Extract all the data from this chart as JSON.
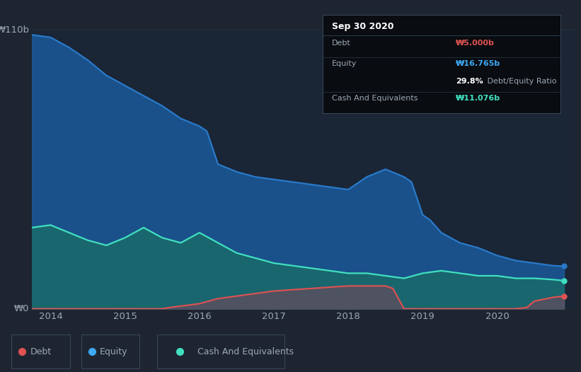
{
  "bg_color": "#1e2530",
  "chart_bg": "#1a2535",
  "ylim": [
    0,
    110
  ],
  "xlim_left": 2013.75,
  "xlim_right": 2021.05,
  "ylabel_text": "₩0",
  "ylabel_top": "₩110b",
  "x_ticks": [
    2014,
    2015,
    2016,
    2017,
    2018,
    2019,
    2020
  ],
  "tooltip": {
    "date": "Sep 30 2020",
    "debt_label": "Debt",
    "debt_value": "₩5.000b",
    "equity_label": "Equity",
    "equity_value": "₩16.765b",
    "ratio_pct": "29.8%",
    "ratio_label": " Debt/Equity Ratio",
    "cash_label": "Cash And Equivalents",
    "cash_value": "₩11.076b"
  },
  "legend": [
    {
      "label": "Debt",
      "color": "#e05252"
    },
    {
      "label": "Equity",
      "color": "#3fa9f5"
    },
    {
      "label": "Cash And Equivalents",
      "color": "#40e0c0"
    }
  ],
  "equity_x": [
    2013.75,
    2014.0,
    2014.25,
    2014.5,
    2014.75,
    2015.0,
    2015.25,
    2015.5,
    2015.75,
    2016.0,
    2016.1,
    2016.25,
    2016.5,
    2016.75,
    2017.0,
    2017.25,
    2017.5,
    2017.75,
    2018.0,
    2018.25,
    2018.5,
    2018.75,
    2018.85,
    2019.0,
    2019.1,
    2019.25,
    2019.5,
    2019.75,
    2020.0,
    2020.25,
    2020.5,
    2020.75,
    2020.9
  ],
  "equity_y": [
    108,
    107,
    103,
    98,
    92,
    88,
    84,
    80,
    75,
    72,
    70,
    57,
    54,
    52,
    51,
    50,
    49,
    48,
    47,
    52,
    55,
    52,
    50,
    37,
    35,
    30,
    26,
    24,
    21,
    19,
    18,
    17,
    16.765
  ],
  "cash_x": [
    2013.75,
    2014.0,
    2014.25,
    2014.5,
    2014.75,
    2015.0,
    2015.25,
    2015.5,
    2015.75,
    2016.0,
    2016.25,
    2016.5,
    2016.75,
    2017.0,
    2017.25,
    2017.5,
    2017.75,
    2018.0,
    2018.25,
    2018.5,
    2018.75,
    2019.0,
    2019.25,
    2019.5,
    2019.75,
    2020.0,
    2020.25,
    2020.5,
    2020.75,
    2020.9
  ],
  "cash_y": [
    32,
    33,
    30,
    27,
    25,
    28,
    32,
    28,
    26,
    30,
    26,
    22,
    20,
    18,
    17,
    16,
    15,
    14,
    14,
    13,
    12,
    14,
    15,
    14,
    13,
    13,
    12,
    12,
    11.5,
    11.076
  ],
  "debt_x": [
    2013.75,
    2014.0,
    2014.25,
    2014.5,
    2014.75,
    2015.0,
    2015.25,
    2015.5,
    2015.6,
    2016.0,
    2016.25,
    2016.5,
    2016.75,
    2017.0,
    2017.25,
    2017.5,
    2017.75,
    2018.0,
    2018.25,
    2018.5,
    2018.6,
    2018.75,
    2019.0,
    2019.25,
    2019.5,
    2019.75,
    2020.0,
    2020.25,
    2020.4,
    2020.5,
    2020.75,
    2020.9
  ],
  "debt_y": [
    0,
    0,
    0,
    0,
    0,
    0,
    0,
    0,
    0.5,
    2,
    4,
    5,
    6,
    7,
    7.5,
    8,
    8.5,
    9,
    9,
    9,
    8,
    0,
    0,
    0,
    0,
    0,
    0,
    0,
    0.5,
    3,
    4.5,
    5
  ],
  "equity_color": "#2979c9",
  "cash_color": "#40e0c0",
  "debt_color": "#e05252",
  "grid_color": "#253545",
  "text_color": "#9ba8b5"
}
